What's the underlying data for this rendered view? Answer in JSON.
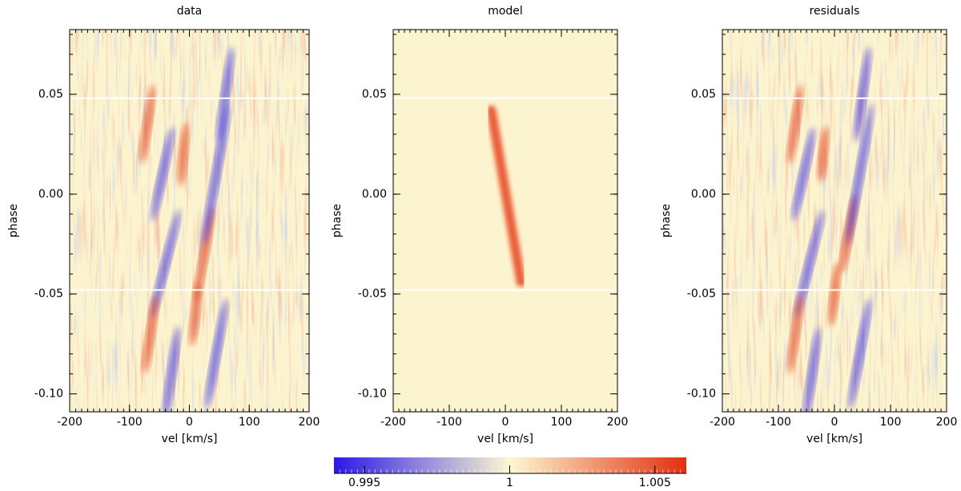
{
  "chart_data": [
    {
      "type": "heatmap",
      "title": "data",
      "xlabel": "vel [km/s]",
      "ylabel": "phase",
      "xlim": [
        -200,
        200
      ],
      "ylim": [
        -0.109,
        0.0824
      ],
      "xticks": [
        -200,
        -100,
        0,
        100,
        200
      ],
      "yticks": [
        {
          "value": -0.1,
          "label": "-0.10"
        },
        {
          "value": -0.05,
          "label": "-0.05"
        },
        {
          "value": 0,
          "label": "0.00"
        },
        {
          "value": 0.05,
          "label": "0.05"
        }
      ],
      "hlines": [
        0.048,
        -0.048
      ]
    },
    {
      "type": "heatmap",
      "title": "model",
      "xlabel": "vel [km/s]",
      "ylabel": "phase",
      "xlim": [
        -200,
        200
      ],
      "ylim": [
        -0.109,
        0.0824
      ],
      "xticks": [
        -200,
        -100,
        0,
        100,
        200
      ],
      "yticks": [
        {
          "value": -0.1,
          "label": "-0.10"
        },
        {
          "value": -0.05,
          "label": "-0.05"
        },
        {
          "value": 0,
          "label": "0.00"
        },
        {
          "value": 0.05,
          "label": "0.05"
        }
      ],
      "hlines": [
        0.048,
        -0.048
      ],
      "stripe": {
        "x": [
          -25,
          28
        ],
        "y": [
          0.042,
          -0.044
        ],
        "color": "#e8502c"
      }
    },
    {
      "type": "heatmap",
      "title": "residuals",
      "xlabel": "vel [km/s]",
      "ylabel": "phase",
      "xlim": [
        -200,
        200
      ],
      "ylim": [
        -0.109,
        0.0824
      ],
      "xticks": [
        -200,
        -100,
        0,
        100,
        200
      ],
      "yticks": [
        {
          "value": -0.1,
          "label": "-0.10"
        },
        {
          "value": -0.05,
          "label": "-0.05"
        },
        {
          "value": 0,
          "label": "0.00"
        },
        {
          "value": 0.05,
          "label": "0.05"
        }
      ],
      "hlines": [
        0.048,
        -0.048
      ]
    },
    {
      "type": "colorbar",
      "lim": [
        0.99395,
        1.00608
      ],
      "ticks": [
        0.995,
        1,
        1.005
      ],
      "colors": [
        "#2a17e8",
        "#fcf8d2",
        "#e42e0e"
      ]
    }
  ]
}
